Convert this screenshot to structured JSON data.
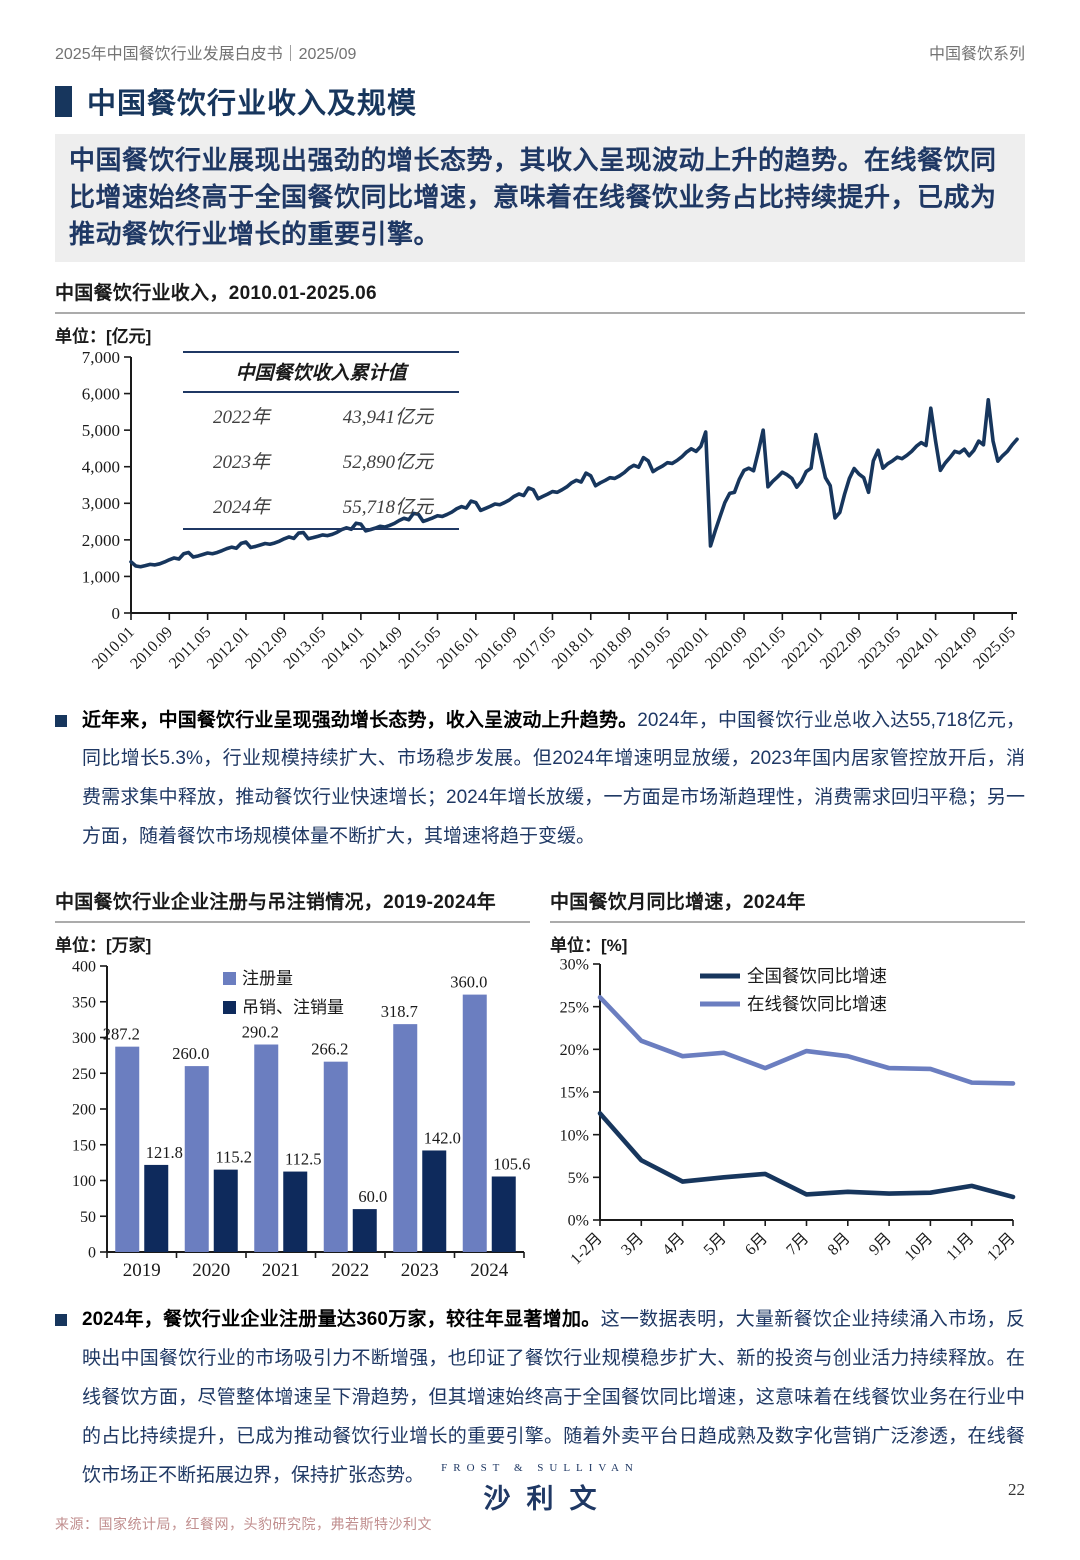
{
  "page": {
    "header_left": "2025年中国餐饮行业发展白皮书｜2025/09",
    "header_right": "中国餐饮系列",
    "section_title": "中国餐饮行业收入及规模",
    "highlight": "中国餐饮行业展现出强劲的增长态势，其收入呈现波动上升的趋势。在线餐饮同比增速始终高于全国餐饮同比增速，意味着在线餐饮业务占比持续提升，已成为推动餐饮行业增长的重要引擎。",
    "source": "来源：国家统计局，红餐网，头豹研究院，弗若斯特沙利文",
    "page_number": "22",
    "logo_top": "FROST & SULLIVAN",
    "logo_bottom": "沙利文"
  },
  "bullet1": {
    "bold": "近年来，中国餐饮行业呈现强劲增长态势，收入呈波动上升趋势。",
    "rest": "2024年，中国餐饮行业总收入达55,718亿元，同比增长5.3%，行业规模持续扩大、市场稳步发展。但2024年增速明显放缓，2023年国内居家管控放开后，消费需求集中释放，推动餐饮行业快速增长；2024年增长放缓，一方面是市场渐趋理性，消费需求回归平稳；另一方面，随着餐饮市场规模体量不断扩大，其增速将趋于变缓。"
  },
  "bullet2": {
    "bold": "2024年，餐饮行业企业注册量达360万家，较往年显著增加。",
    "rest": "这一数据表明，大量新餐饮企业持续涌入市场，反映出中国餐饮行业的市场吸引力不断增强，也印证了餐饮行业规模稳步扩大、新的投资与创业活力持续释放。在线餐饮方面，尽管整体增速呈下滑趋势，但其增速始终高于全国餐饮同比增速，这意味着在线餐饮业务在行业中的占比持续提升，已成为推动餐饮行业增长的重要引擎。随着外卖平台日趋成熟及数字化营销广泛渗透，在线餐饮市场正不断拓展边界，保持扩张态势。"
  },
  "chart_data": [
    {
      "type": "line",
      "title": "中国餐饮行业收入，2010.01-2025.06",
      "unit_label": "单位：[亿元]",
      "ylim": [
        0,
        7000
      ],
      "ytick_step": 1000,
      "grid": false,
      "x_tick_every": 8,
      "x_tick_labels": [
        "2010.01",
        "2010.09",
        "2011.05",
        "2012.01",
        "2012.09",
        "2013.05",
        "2014.01",
        "2014.09",
        "2015.05",
        "2016.01",
        "2016.09",
        "2017.05",
        "2018.01",
        "2018.09",
        "2019.05",
        "2020.01",
        "2020.09",
        "2021.05",
        "2022.01",
        "2022.09",
        "2023.05",
        "2024.01",
        "2024.09",
        "2025.05"
      ],
      "series": [
        {
          "name": "中国餐饮行业收入",
          "color": "#17365D",
          "values": [
            1400,
            1285,
            1265,
            1295,
            1330,
            1315,
            1345,
            1395,
            1455,
            1505,
            1475,
            1620,
            1655,
            1530,
            1560,
            1600,
            1640,
            1620,
            1655,
            1705,
            1760,
            1800,
            1770,
            1905,
            1940,
            1790,
            1820,
            1860,
            1900,
            1880,
            1915,
            1965,
            2030,
            2080,
            2040,
            2185,
            2200,
            2030,
            2060,
            2095,
            2135,
            2115,
            2150,
            2205,
            2280,
            2330,
            2290,
            2455,
            2430,
            2245,
            2280,
            2320,
            2370,
            2350,
            2395,
            2450,
            2530,
            2590,
            2550,
            2725,
            2700,
            2505,
            2550,
            2600,
            2660,
            2640,
            2695,
            2760,
            2850,
            2910,
            2870,
            3060,
            3020,
            2805,
            2860,
            2915,
            2980,
            2960,
            3020,
            3090,
            3190,
            3255,
            3210,
            3420,
            3370,
            3125,
            3190,
            3250,
            3320,
            3300,
            3370,
            3450,
            3560,
            3630,
            3580,
            3825,
            3750,
            3480,
            3560,
            3625,
            3700,
            3680,
            3750,
            3840,
            3960,
            4040,
            3985,
            4250,
            4160,
            3865,
            3950,
            4020,
            4110,
            4090,
            4170,
            4270,
            4400,
            4490,
            4420,
            4560,
            4950,
            1832,
            2250,
            2640,
            3020,
            3270,
            3300,
            3650,
            3900,
            3960,
            3890,
            4420,
            5000,
            3450,
            3600,
            3720,
            3850,
            3780,
            3680,
            3440,
            3600,
            3870,
            3960,
            4880,
            4300,
            3700,
            3480,
            2600,
            2750,
            3250,
            3680,
            3950,
            3800,
            3700,
            3300,
            4160,
            4450,
            3960,
            4080,
            4160,
            4260,
            4220,
            4310,
            4420,
            4560,
            4660,
            4580,
            5600,
            4700,
            3900,
            4100,
            4250,
            4420,
            4380,
            4480,
            4300,
            4450,
            4700,
            4600,
            5830,
            4700,
            4150,
            4300,
            4420,
            4600,
            4750
          ]
        }
      ],
      "inset_table": {
        "title": "中国餐饮收入累计值",
        "rows": [
          [
            "2022年",
            "43,941亿元"
          ],
          [
            "2023年",
            "52,890亿元"
          ],
          [
            "2024年",
            "55,718亿元"
          ]
        ]
      }
    },
    {
      "type": "bar",
      "title": "中国餐饮行业企业注册与吊注销情况，2019-2024年",
      "unit_label": "单位：[万家]",
      "categories": [
        "2019",
        "2020",
        "2021",
        "2022",
        "2023",
        "2024"
      ],
      "ylim": [
        0,
        400
      ],
      "ytick_step": 50,
      "grid": false,
      "legend_position": "top-inside",
      "series": [
        {
          "name": "注册量",
          "color": "#6B7EC0",
          "values": [
            287.2,
            260.0,
            290.2,
            266.2,
            318.7,
            360.0
          ]
        },
        {
          "name": "吊销、注销量",
          "color": "#0E2A5C",
          "values": [
            121.8,
            115.2,
            112.5,
            60.0,
            142.0,
            105.6
          ]
        }
      ]
    },
    {
      "type": "line",
      "title": "中国餐饮月同比增速，2024年",
      "unit_label": "单位：[%]",
      "categories": [
        "1-2月",
        "3月",
        "4月",
        "5月",
        "6月",
        "7月",
        "8月",
        "9月",
        "10月",
        "11月",
        "12月"
      ],
      "ylim": [
        0,
        30
      ],
      "ytick_step": 5,
      "ytick_suffix": "%",
      "grid": false,
      "legend_position": "top-inside",
      "series": [
        {
          "name": "全国餐饮同比增速",
          "color": "#17365D",
          "values": [
            12.5,
            7.0,
            4.5,
            5.0,
            5.4,
            3.0,
            3.3,
            3.1,
            3.2,
            4.0,
            2.7
          ]
        },
        {
          "name": "在线餐饮同比增速",
          "color": "#6B7EC0",
          "values": [
            26.1,
            21.0,
            19.2,
            19.6,
            17.8,
            19.8,
            19.2,
            17.8,
            17.7,
            16.1,
            16.0
          ]
        }
      ]
    }
  ]
}
